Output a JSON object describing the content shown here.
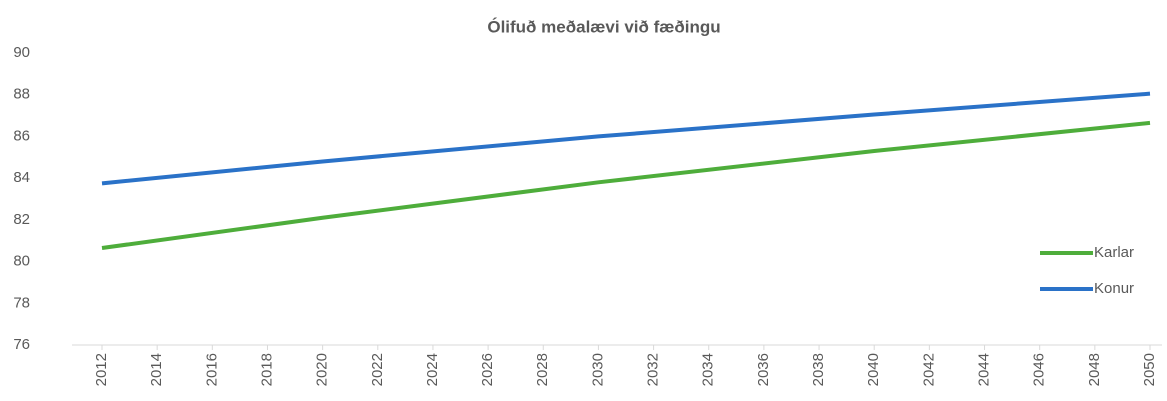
{
  "chart_data": {
    "type": "line",
    "title": "Ólifuð meðalævi við fæðingu",
    "x": [
      2012,
      2020,
      2030,
      2040,
      2050
    ],
    "series": [
      {
        "name": "Karlar",
        "color": "#4ead3b",
        "values": [
          80.65,
          82.1,
          83.8,
          85.3,
          86.65
        ]
      },
      {
        "name": "Konur",
        "color": "#2a72c8",
        "values": [
          83.75,
          84.8,
          86.0,
          87.05,
          88.05
        ]
      }
    ],
    "xlim": [
      2012,
      2050
    ],
    "xticks": [
      2012,
      2014,
      2016,
      2018,
      2020,
      2022,
      2024,
      2026,
      2028,
      2030,
      2032,
      2034,
      2036,
      2038,
      2040,
      2042,
      2044,
      2046,
      2048,
      2050
    ],
    "ylim": [
      76,
      90
    ],
    "yticks": [
      76,
      78,
      80,
      82,
      84,
      86,
      88,
      90
    ],
    "grid": false,
    "legend": "right"
  }
}
